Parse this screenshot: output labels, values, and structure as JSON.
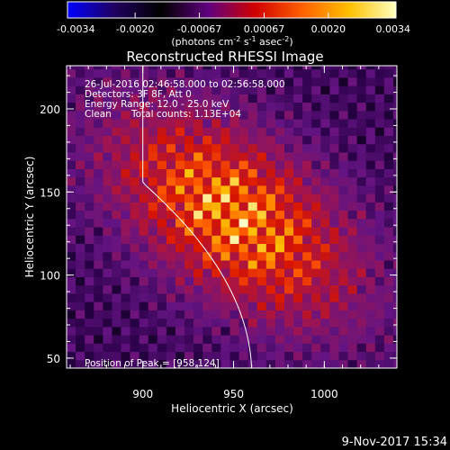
{
  "colorbar": {
    "ticks": [
      "-0.0034",
      "-0.0020",
      "-0.00067",
      "0.00067",
      "0.0020",
      "0.0034"
    ],
    "tick_values": [
      -0.0034,
      -0.002,
      -0.00067,
      0.00067,
      0.002,
      0.0034
    ],
    "range": [
      -0.0034,
      0.0034
    ],
    "units_main": "(photons cm",
    "units_sup1": "-2",
    "units_mid": " s",
    "units_sup2": "-1",
    "units_end": " asec",
    "units_sup3": "-2",
    "units_close": ")",
    "stops": [
      "#0000ff",
      "#200060",
      "#000000",
      "#600080",
      "#d00000",
      "#ff6000",
      "#ffc000",
      "#ffffc0"
    ]
  },
  "chart_data": {
    "type": "heatmap",
    "title": "Reconstructed RHESSI Image",
    "xlabel": "Heliocentric X (arcsec)",
    "ylabel": "Heliocentric Y (arcsec)",
    "xlim": [
      858,
      1040
    ],
    "ylim": [
      44,
      226
    ],
    "xticks": [
      900,
      950,
      1000
    ],
    "yticks": [
      50,
      100,
      150,
      200
    ],
    "xtick_labels": [
      "900",
      "950",
      "1000"
    ],
    "ytick_labels": [
      "50",
      "100",
      "150",
      "200"
    ],
    "peak": [
      958,
      124
    ],
    "grid": false,
    "annotations": {
      "time": "26-Jul-2016 02:46:58.000 to 02:56:58.000",
      "detectors": "Detectors: 3F 8F, Att 0",
      "energy": "Energy Range: 12.0 - 25.0 keV",
      "clean": "Clean",
      "counts": "Total counts: 1.13E+04",
      "peak_label": "Position of Peak = [958,124]"
    }
  },
  "footer": {
    "timestamp": "9-Nov-2017 15:34"
  }
}
